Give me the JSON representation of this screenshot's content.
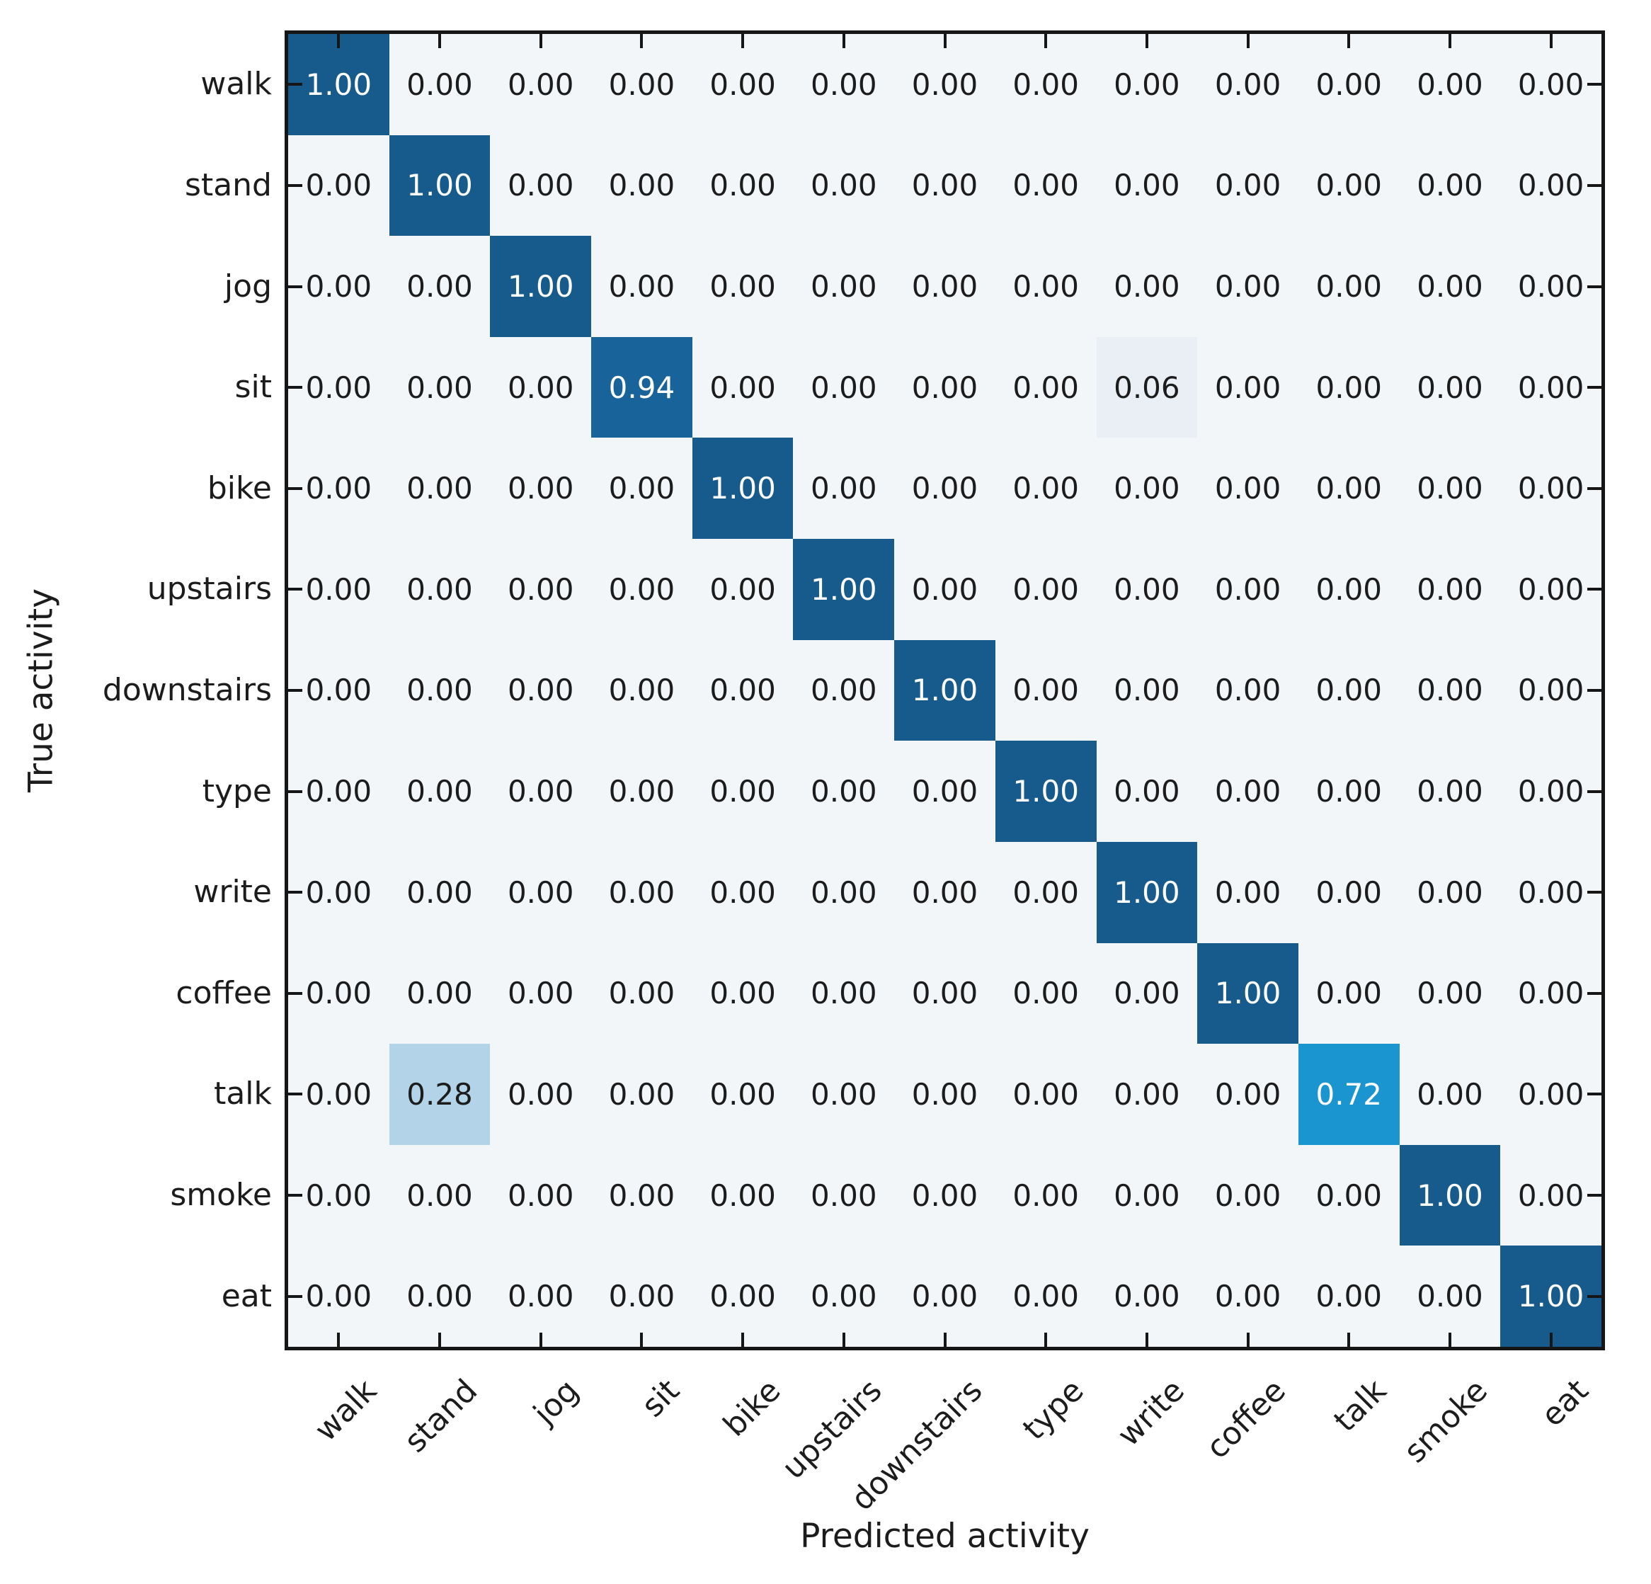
{
  "figure": {
    "background": "#ffffff",
    "spine_color": "#161616"
  },
  "chart_data": {
    "type": "heatmap",
    "title": "",
    "xlabel": "Predicted activity",
    "ylabel": "True activity",
    "categories": [
      "walk",
      "stand",
      "jog",
      "sit",
      "bike",
      "upstairs",
      "downstairs",
      "type",
      "write",
      "coffee",
      "talk",
      "smoke",
      "eat"
    ],
    "x_tick_labels": [
      "walk",
      "stand",
      "jog",
      "sit",
      "bike",
      "upstairs",
      "downstairs",
      "type",
      "write",
      "coffee",
      "talk",
      "smoke",
      "eat"
    ],
    "y_tick_labels": [
      "walk",
      "stand",
      "jog",
      "sit",
      "bike",
      "upstairs",
      "downstairs",
      "type",
      "write",
      "coffee",
      "talk",
      "smoke",
      "eat"
    ],
    "matrix": [
      [
        1.0,
        0.0,
        0.0,
        0.0,
        0.0,
        0.0,
        0.0,
        0.0,
        0.0,
        0.0,
        0.0,
        0.0,
        0.0
      ],
      [
        0.0,
        1.0,
        0.0,
        0.0,
        0.0,
        0.0,
        0.0,
        0.0,
        0.0,
        0.0,
        0.0,
        0.0,
        0.0
      ],
      [
        0.0,
        0.0,
        1.0,
        0.0,
        0.0,
        0.0,
        0.0,
        0.0,
        0.0,
        0.0,
        0.0,
        0.0,
        0.0
      ],
      [
        0.0,
        0.0,
        0.0,
        0.94,
        0.0,
        0.0,
        0.0,
        0.0,
        0.06,
        0.0,
        0.0,
        0.0,
        0.0
      ],
      [
        0.0,
        0.0,
        0.0,
        0.0,
        1.0,
        0.0,
        0.0,
        0.0,
        0.0,
        0.0,
        0.0,
        0.0,
        0.0
      ],
      [
        0.0,
        0.0,
        0.0,
        0.0,
        0.0,
        1.0,
        0.0,
        0.0,
        0.0,
        0.0,
        0.0,
        0.0,
        0.0
      ],
      [
        0.0,
        0.0,
        0.0,
        0.0,
        0.0,
        0.0,
        1.0,
        0.0,
        0.0,
        0.0,
        0.0,
        0.0,
        0.0
      ],
      [
        0.0,
        0.0,
        0.0,
        0.0,
        0.0,
        0.0,
        0.0,
        1.0,
        0.0,
        0.0,
        0.0,
        0.0,
        0.0
      ],
      [
        0.0,
        0.0,
        0.0,
        0.0,
        0.0,
        0.0,
        0.0,
        0.0,
        1.0,
        0.0,
        0.0,
        0.0,
        0.0
      ],
      [
        0.0,
        0.0,
        0.0,
        0.0,
        0.0,
        0.0,
        0.0,
        0.0,
        0.0,
        1.0,
        0.0,
        0.0,
        0.0
      ],
      [
        0.0,
        0.28,
        0.0,
        0.0,
        0.0,
        0.0,
        0.0,
        0.0,
        0.0,
        0.0,
        0.72,
        0.0,
        0.0
      ],
      [
        0.0,
        0.0,
        0.0,
        0.0,
        0.0,
        0.0,
        0.0,
        0.0,
        0.0,
        0.0,
        0.0,
        1.0,
        0.0
      ],
      [
        0.0,
        0.0,
        0.0,
        0.0,
        0.0,
        0.0,
        0.0,
        0.0,
        0.0,
        0.0,
        0.0,
        0.0,
        1.0
      ]
    ],
    "value_format_decimals": 2,
    "colormap": {
      "0.00": "#f3f6f9",
      "0.06": "#e9eff5",
      "0.28": "#b3d3e8",
      "0.72": "#1b95d0",
      "0.94": "#186399",
      "1.00": "#175a8c"
    },
    "cell_text_color_dark": "#1c1c1c",
    "cell_text_color_light": "#ffffff",
    "white_text_threshold": 0.5,
    "grid": "off",
    "legend": "none",
    "tick_direction": "in"
  }
}
